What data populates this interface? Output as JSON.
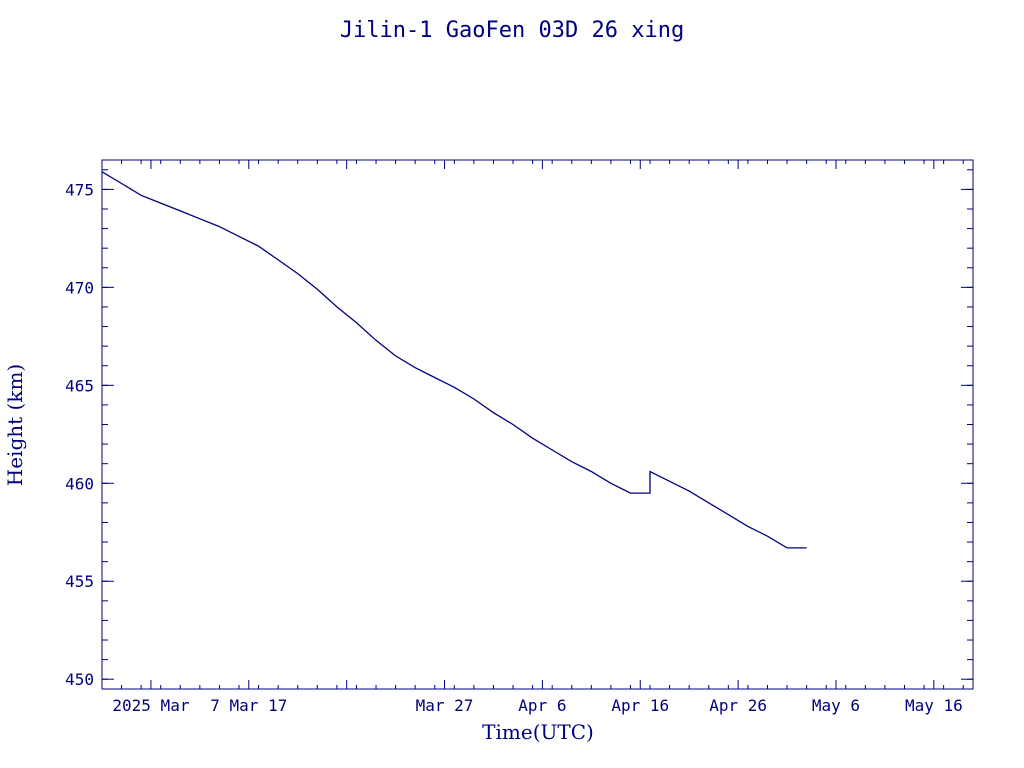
{
  "colors": {
    "ink": "#00007f",
    "background": "#ffffff"
  },
  "chart_data": {
    "type": "line",
    "title": "Jilin-1 GaoFen 03D 26 xing",
    "xlabel": "Time(UTC)",
    "ylabel": "Height (km)",
    "xlim": [
      "2025-02-20",
      "2025-05-20"
    ],
    "ylim": [
      449.5,
      476.5
    ],
    "x_tick_labels": [
      {
        "date": "2025-02-25",
        "label": "2025 Mar"
      },
      {
        "date": "2025-03-07",
        "label": "7 Mar 17"
      },
      {
        "date": "2025-03-17",
        "label": ""
      },
      {
        "date": "2025-03-27",
        "label": "Mar 27"
      },
      {
        "date": "2025-04-06",
        "label": "Apr  6"
      },
      {
        "date": "2025-04-16",
        "label": "Apr 16"
      },
      {
        "date": "2025-04-26",
        "label": "Apr 26"
      },
      {
        "date": "2025-05-06",
        "label": "May  6"
      },
      {
        "date": "2025-05-16",
        "label": "May 16"
      }
    ],
    "y_ticks": [
      450,
      455,
      460,
      465,
      470,
      475
    ],
    "grid": false,
    "series": [
      {
        "x": [
          "2025-02-20",
          "2025-02-22",
          "2025-02-24",
          "2025-02-26",
          "2025-02-28",
          "2025-03-02",
          "2025-03-04",
          "2025-03-06",
          "2025-03-08",
          "2025-03-10",
          "2025-03-12",
          "2025-03-14",
          "2025-03-16",
          "2025-03-18",
          "2025-03-20",
          "2025-03-22",
          "2025-03-24",
          "2025-03-26",
          "2025-03-28",
          "2025-03-30",
          "2025-04-01",
          "2025-04-03",
          "2025-04-05",
          "2025-04-07",
          "2025-04-09",
          "2025-04-11",
          "2025-04-13",
          "2025-04-15",
          "2025-04-17",
          "2025-04-17",
          "2025-04-19",
          "2025-04-21",
          "2025-04-23",
          "2025-04-25",
          "2025-04-27",
          "2025-04-29",
          "2025-05-01",
          "2025-05-03"
        ],
        "y": [
          475.9,
          475.3,
          474.7,
          474.3,
          473.9,
          473.5,
          473.1,
          472.6,
          472.1,
          471.4,
          470.7,
          469.9,
          469.0,
          468.2,
          467.3,
          466.5,
          465.9,
          465.4,
          464.9,
          464.3,
          463.6,
          463.0,
          462.3,
          461.7,
          461.1,
          460.6,
          460.0,
          459.5,
          459.5,
          460.6,
          460.1,
          459.6,
          459.0,
          458.4,
          457.8,
          457.3,
          456.7,
          456.7
        ]
      }
    ]
  }
}
